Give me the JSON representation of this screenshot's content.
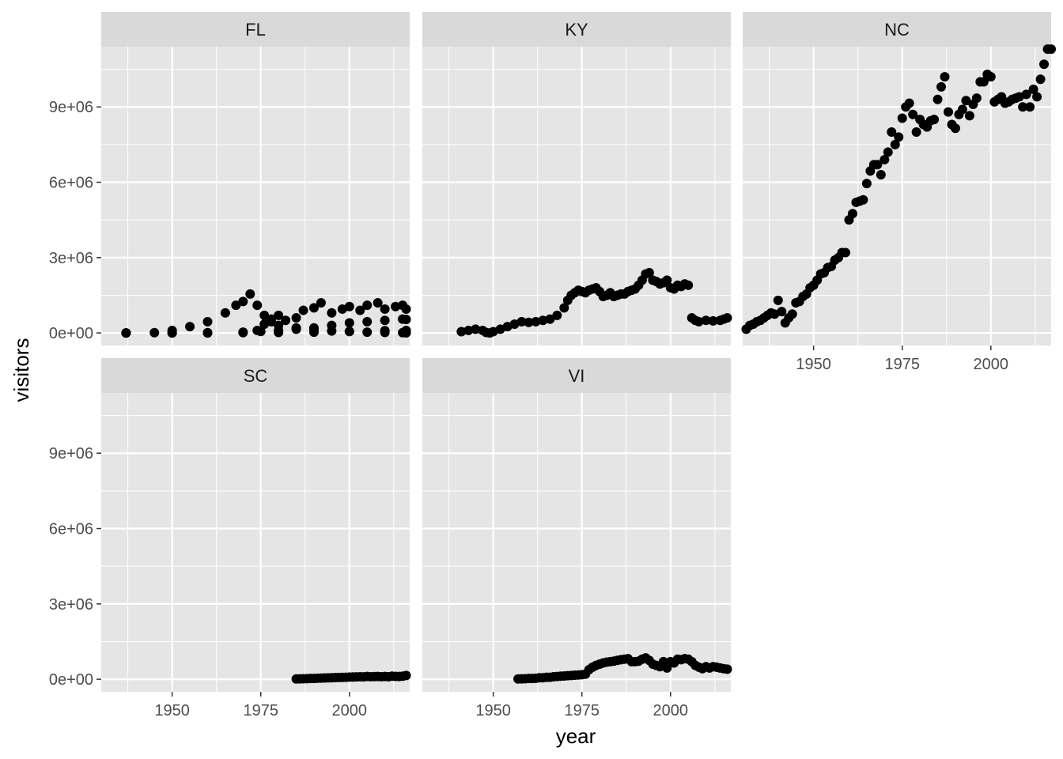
{
  "chart_data": {
    "type": "scatter",
    "xlabel": "year",
    "ylabel": "visitors",
    "xlim": [
      1930,
      2017
    ],
    "ylim": [
      -500000,
      11400000
    ],
    "x_ticks": [
      1950,
      1975,
      2000
    ],
    "x_tick_labels": [
      "1950",
      "1975",
      "2000"
    ],
    "y_ticks": [
      0,
      3000000,
      6000000,
      9000000
    ],
    "y_tick_labels": [
      "0e+00",
      "3e+06",
      "6e+06",
      "9e+06"
    ],
    "grid": true,
    "colors": {
      "panel_background": "#e5e5e5",
      "strip_background": "#d9d9d9",
      "grid_line": "#ffffff",
      "point": "#000000"
    },
    "facets": [
      {
        "label": "FL",
        "series": [
          {
            "x": [
              1937,
              1945,
              1950,
              1955,
              1960,
              1965,
              1968,
              1970,
              1972,
              1974,
              1976,
              1978,
              1980,
              1985,
              1990,
              1995,
              2000,
              2005,
              2010,
              2015,
              2016
            ],
            "y": [
              0,
              10000,
              100000,
              250000,
              450000,
              800000,
              1100000,
              1250000,
              1550000,
              1100000,
              700000,
              550000,
              300000,
              200000,
              150000,
              80000,
              60000,
              30000,
              20000,
              10000,
              5000
            ]
          },
          {
            "x": [
              1937,
              1950,
              1960,
              1970,
              1975,
              1980,
              1985,
              1990,
              1995,
              2000,
              2005,
              2010,
              2015,
              2016
            ],
            "y": [
              0,
              0,
              10000,
              30000,
              60000,
              100000,
              150000,
              200000,
              300000,
              400000,
              450000,
              500000,
              550000,
              540000
            ]
          },
          {
            "x": [
              1974,
              1976,
              1978,
              1980,
              1982,
              1985,
              1987,
              1990,
              1992,
              1995,
              1998,
              2000,
              2003,
              2005,
              2008,
              2010,
              2013,
              2015,
              2016
            ],
            "y": [
              100000,
              350000,
              450000,
              700000,
              500000,
              600000,
              900000,
              1000000,
              1200000,
              800000,
              950000,
              1050000,
              900000,
              1100000,
              1200000,
              950000,
              1050000,
              1100000,
              950000
            ]
          },
          {
            "x": [
              1937,
              1950,
              1960,
              1970,
              1980,
              1990,
              2000,
              2010,
              2016
            ],
            "y": [
              0,
              0,
              0,
              10000,
              20000,
              30000,
              60000,
              90000,
              100000
            ]
          }
        ]
      },
      {
        "label": "KY",
        "series": [
          {
            "x": [
              1941,
              1943,
              1945,
              1947,
              1948,
              1949,
              1950,
              1952,
              1954,
              1956,
              1958,
              1960,
              1962,
              1964,
              1966,
              1968,
              1970,
              1971,
              1972,
              1973,
              1974,
              1975,
              1976,
              1977,
              1978,
              1979,
              1980,
              1981,
              1982,
              1983,
              1984,
              1985,
              1986,
              1987,
              1988,
              1989,
              1990,
              1991,
              1992,
              1993,
              1994,
              1995,
              1996,
              1997,
              1998,
              1999,
              2000,
              2001,
              2002,
              2003,
              2004,
              2005,
              2006,
              2007,
              2008,
              2010,
              2012,
              2014,
              2015,
              2016
            ],
            "y": [
              50000,
              100000,
              150000,
              100000,
              20000,
              0,
              50000,
              150000,
              250000,
              350000,
              450000,
              420000,
              450000,
              500000,
              550000,
              700000,
              1000000,
              1300000,
              1500000,
              1600000,
              1700000,
              1650000,
              1600000,
              1700000,
              1750000,
              1800000,
              1650000,
              1450000,
              1500000,
              1600000,
              1450000,
              1500000,
              1550000,
              1550000,
              1650000,
              1700000,
              1750000,
              1900000,
              2100000,
              2350000,
              2400000,
              2100000,
              2050000,
              1950000,
              2000000,
              2100000,
              1800000,
              1750000,
              1900000,
              1850000,
              1950000,
              1900000,
              600000,
              500000,
              450000,
              500000,
              480000,
              500000,
              550000,
              600000
            ]
          }
        ]
      },
      {
        "label": "NC",
        "series": [
          {
            "x": [
              1931,
              1932,
              1933,
              1934,
              1935,
              1936,
              1937,
              1938,
              1939,
              1940,
              1941,
              1942,
              1943,
              1944,
              1945,
              1946,
              1947,
              1948,
              1949,
              1950,
              1951,
              1952,
              1953,
              1954,
              1955,
              1956,
              1957,
              1958,
              1959,
              1960,
              1961,
              1962,
              1963,
              1964,
              1965,
              1966,
              1967,
              1968,
              1969,
              1970,
              1971,
              1972,
              1973,
              1974,
              1975,
              1976,
              1977,
              1978,
              1979,
              1980,
              1981,
              1982,
              1983,
              1984,
              1985,
              1986,
              1987,
              1988,
              1989,
              1990,
              1991,
              1992,
              1993,
              1994,
              1995,
              1996,
              1997,
              1998,
              1999,
              2000,
              2001,
              2002,
              2003,
              2004,
              2005,
              2006,
              2007,
              2008,
              2009,
              2010,
              2011,
              2012,
              2013,
              2014,
              2015,
              2016,
              2017
            ],
            "y": [
              150000,
              300000,
              350000,
              450000,
              500000,
              600000,
              700000,
              800000,
              750000,
              1300000,
              850000,
              400000,
              600000,
              750000,
              1200000,
              1250000,
              1450000,
              1550000,
              1800000,
              1900000,
              2100000,
              2350000,
              2400000,
              2600000,
              2650000,
              2900000,
              3000000,
              3200000,
              3200000,
              4500000,
              4750000,
              5200000,
              5250000,
              5300000,
              5950000,
              6450000,
              6700000,
              6700000,
              6300000,
              6900000,
              7200000,
              8000000,
              7500000,
              7800000,
              8550000,
              9000000,
              9150000,
              8700000,
              8000000,
              8500000,
              8300000,
              8200000,
              8450000,
              8500000,
              9300000,
              9800000,
              10200000,
              8800000,
              8300000,
              8150000,
              8700000,
              8900000,
              9250000,
              8650000,
              9100000,
              9350000,
              10000000,
              10000000,
              10300000,
              10200000,
              9200000,
              9300000,
              9400000,
              9150000,
              9200000,
              9300000,
              9350000,
              9400000,
              9000000,
              9500000,
              9000000,
              9700000,
              9400000,
              10100000,
              10700000,
              11300000,
              11300000
            ]
          }
        ]
      },
      {
        "label": "SC",
        "series": [
          {
            "x": [
              1985,
              1986,
              1987,
              1988,
              1989,
              1990,
              1991,
              1992,
              1993,
              1994,
              1995,
              1996,
              1997,
              1998,
              1999,
              2000,
              2001,
              2002,
              2003,
              2004,
              2005,
              2006,
              2007,
              2008,
              2009,
              2010,
              2011,
              2012,
              2013,
              2014,
              2015,
              2016
            ],
            "y": [
              10000,
              15000,
              20000,
              25000,
              30000,
              30000,
              40000,
              45000,
              50000,
              55000,
              60000,
              65000,
              70000,
              75000,
              80000,
              85000,
              90000,
              95000,
              100000,
              95000,
              110000,
              100000,
              105000,
              110000,
              100000,
              110000,
              100000,
              120000,
              115000,
              110000,
              120000,
              150000
            ]
          }
        ]
      },
      {
        "label": "VI",
        "series": [
          {
            "x": [
              1957,
              1958,
              1959,
              1960,
              1961,
              1962,
              1963,
              1964,
              1965,
              1966,
              1967,
              1968,
              1969,
              1970,
              1971,
              1972,
              1973,
              1974,
              1975,
              1976,
              1977,
              1978,
              1979,
              1980,
              1981,
              1982,
              1983,
              1984,
              1985,
              1986,
              1987,
              1988,
              1989,
              1990,
              1991,
              1992,
              1993,
              1994,
              1995,
              1996,
              1997,
              1998,
              1999,
              2000,
              2001,
              2002,
              2003,
              2004,
              2005,
              2006,
              2007,
              2008,
              2009,
              2010,
              2011,
              2012,
              2013,
              2014,
              2015,
              2016
            ],
            "y": [
              10000,
              15000,
              20000,
              30000,
              30000,
              40000,
              60000,
              60000,
              80000,
              80000,
              100000,
              110000,
              120000,
              130000,
              140000,
              150000,
              160000,
              170000,
              180000,
              200000,
              380000,
              480000,
              550000,
              600000,
              650000,
              680000,
              700000,
              720000,
              750000,
              780000,
              800000,
              820000,
              700000,
              700000,
              720000,
              800000,
              850000,
              750000,
              600000,
              550000,
              500000,
              700000,
              450000,
              700000,
              650000,
              800000,
              780000,
              820000,
              800000,
              700000,
              550000,
              480000,
              420000,
              500000,
              450000,
              500000,
              480000,
              450000,
              420000,
              400000
            ]
          }
        ]
      }
    ]
  }
}
